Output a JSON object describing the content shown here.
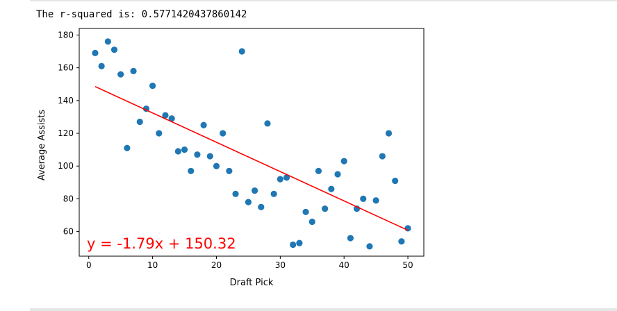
{
  "output": {
    "label": "The r-squared is:",
    "r_squared": "0.5771420437860142"
  },
  "chart_data": {
    "type": "scatter",
    "xlabel": "Draft Pick",
    "ylabel": "Average Assists",
    "xlim": [
      -1.5,
      52.5
    ],
    "ylim": [
      45,
      184
    ],
    "xticks": [
      0,
      10,
      20,
      30,
      40,
      50
    ],
    "yticks": [
      60,
      80,
      100,
      120,
      140,
      160,
      180
    ],
    "grid": false,
    "point_color": "#1f77b4",
    "series": [
      {
        "x": [
          1,
          2,
          3,
          4,
          5,
          6,
          7,
          8,
          9,
          10,
          11,
          12,
          13,
          14,
          15,
          16,
          17,
          18,
          19,
          20,
          21,
          22,
          23,
          24,
          25,
          26,
          27,
          28,
          29,
          30,
          31,
          32,
          33,
          34,
          35,
          36,
          37,
          38,
          39,
          40,
          41,
          42,
          43,
          44,
          45,
          46,
          47,
          48,
          49,
          50
        ],
        "y": [
          169,
          161,
          176,
          171,
          156,
          111,
          158,
          127,
          135,
          149,
          120,
          131,
          129,
          109,
          110,
          97,
          107,
          125,
          106,
          100,
          120,
          97,
          83,
          170,
          78,
          85,
          75,
          126,
          83,
          92,
          93,
          52,
          53,
          72,
          66,
          97,
          74,
          86,
          95,
          103,
          56,
          74,
          80,
          51,
          79,
          106,
          120,
          91,
          54,
          62
        ]
      }
    ],
    "regression": {
      "slope": -1.79,
      "intercept": 150.32,
      "x_range": [
        1,
        50
      ],
      "color": "#ff0000",
      "equation_label": "y = -1.79x + 150.32"
    }
  }
}
